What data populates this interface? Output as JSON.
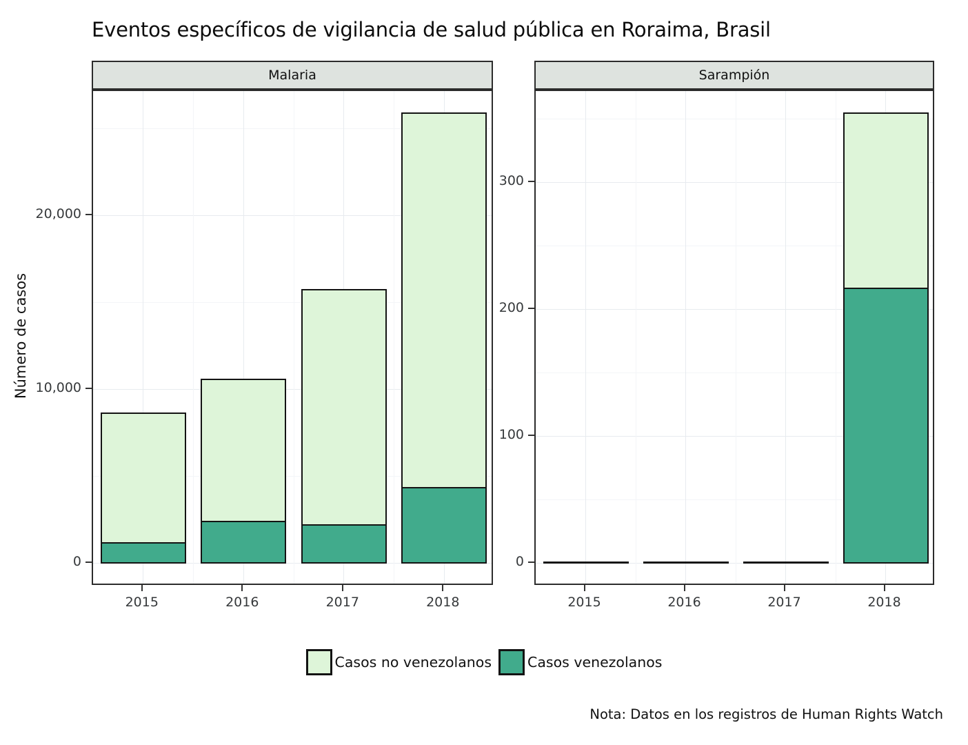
{
  "title": "Eventos específicos de vigilancia de salud pública en Roraima, Brasil",
  "y_axis_title": "Número de casos",
  "note": "Nota: Datos en los registros de Human Rights Watch",
  "legend": {
    "items": [
      {
        "label": "Casos no venezolanos",
        "color": "#def5d9"
      },
      {
        "label": "Casos venezolanos",
        "color": "#41ab8c"
      }
    ]
  },
  "colors": {
    "light_green": "#def5d9",
    "teal": "#41ab8c",
    "strip_bg": "#dee3df",
    "bar_outline": "#131313",
    "panel_border": "#2b2b2b",
    "grid_major": "#e7ebef",
    "grid_minor": "#f3f5f8",
    "tick_text": "#36393b"
  },
  "chart_data": [
    {
      "type": "bar",
      "panel": "Malaria",
      "stacked": true,
      "categories": [
        "2015",
        "2016",
        "2017",
        "2018"
      ],
      "series": [
        {
          "name": "Casos venezolanos",
          "color": "#41ab8c",
          "values": [
            1230,
            2450,
            2250,
            4400
          ]
        },
        {
          "name": "Casos no venezolanos",
          "color": "#def5d9",
          "values": [
            7470,
            8200,
            13550,
            21550
          ]
        }
      ],
      "totals": [
        8700,
        10650,
        15800,
        25950
      ],
      "ylabel": "Número de casos",
      "yticks": [
        {
          "v": 0,
          "label": "0"
        },
        {
          "v": 10000,
          "label": "10,000"
        },
        {
          "v": 20000,
          "label": "20,000"
        }
      ],
      "yminor": [
        5000,
        15000,
        25000
      ],
      "ylim": [
        -1310,
        27180
      ],
      "grid": true,
      "legend_position": "bottom"
    },
    {
      "type": "bar",
      "panel": "Sarampión",
      "stacked": true,
      "categories": [
        "2015",
        "2016",
        "2017",
        "2018"
      ],
      "series": [
        {
          "name": "Casos venezolanos",
          "color": "#41ab8c",
          "values": [
            0,
            0,
            0,
            217
          ]
        },
        {
          "name": "Casos no venezolanos",
          "color": "#def5d9",
          "values": [
            1,
            0,
            0,
            138
          ]
        }
      ],
      "totals": [
        1,
        0,
        0,
        355
      ],
      "ylabel": "Número de casos",
      "yticks": [
        {
          "v": 0,
          "label": "0"
        },
        {
          "v": 100,
          "label": "100"
        },
        {
          "v": 200,
          "label": "200"
        },
        {
          "v": 300,
          "label": "300"
        }
      ],
      "yminor": [
        50,
        150,
        250,
        350
      ],
      "ylim": [
        -18,
        372
      ],
      "grid": true,
      "legend_position": "bottom"
    }
  ]
}
